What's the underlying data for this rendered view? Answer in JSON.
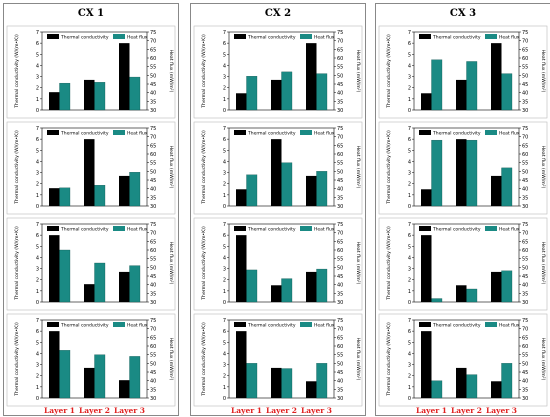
{
  "columns": [
    {
      "title": "CX 1"
    },
    {
      "title": "CX 2"
    },
    {
      "title": "CX 3"
    }
  ],
  "legend": {
    "thermal_conductivity": "Thermal conductivity",
    "heat_flux": "Heat flux"
  },
  "axis_labels": {
    "left": "Thermal conductivity (W/(m•K))",
    "right": "Heat flux (mW/m²)"
  },
  "colors": {
    "thermal_conductivity": "#000000",
    "heat_flux": "#1a8a84",
    "layer_label": "#e02020"
  },
  "chart_data": {
    "type": "bar",
    "categories": [
      "Layer 1",
      "Layer 2",
      "Layer 3"
    ],
    "left_axis": {
      "label": "Thermal conductivity (W/(m•K))",
      "ylim": [
        0,
        7
      ],
      "ticks": [
        0,
        1,
        2,
        3,
        4,
        5,
        6,
        7
      ]
    },
    "right_axis": {
      "label": "Heat flux (mW/m²)",
      "ylim": [
        30,
        75
      ],
      "ticks": [
        30,
        35,
        40,
        45,
        50,
        55,
        60,
        65,
        70,
        75
      ]
    },
    "panels": [
      {
        "column": "CX 1",
        "row": 1,
        "thermal_conductivity": [
          1.6,
          2.7,
          6.0
        ],
        "heat_flux": [
          45.5,
          46.0,
          49.0
        ]
      },
      {
        "column": "CX 1",
        "row": 2,
        "thermal_conductivity": [
          1.6,
          6.0,
          2.7
        ],
        "heat_flux": [
          40.5,
          42.0,
          49.5
        ]
      },
      {
        "column": "CX 1",
        "row": 3,
        "thermal_conductivity": [
          6.0,
          1.6,
          2.7
        ],
        "heat_flux": [
          60.0,
          52.5,
          51.0
        ]
      },
      {
        "column": "CX 1",
        "row": 4,
        "thermal_conductivity": [
          6.0,
          2.7,
          1.6
        ],
        "heat_flux": [
          57.5,
          55.0,
          54.0
        ]
      },
      {
        "column": "CX 2",
        "row": 1,
        "thermal_conductivity": [
          1.5,
          2.7,
          6.0
        ],
        "heat_flux": [
          49.5,
          52.0,
          51.0
        ]
      },
      {
        "column": "CX 2",
        "row": 2,
        "thermal_conductivity": [
          1.5,
          6.0,
          2.7
        ],
        "heat_flux": [
          48.0,
          55.0,
          50.0
        ]
      },
      {
        "column": "CX 2",
        "row": 3,
        "thermal_conductivity": [
          6.0,
          1.5,
          2.7
        ],
        "heat_flux": [
          48.5,
          43.5,
          49.0
        ]
      },
      {
        "column": "CX 2",
        "row": 4,
        "thermal_conductivity": [
          6.0,
          2.7,
          1.5
        ],
        "heat_flux": [
          50.0,
          47.0,
          50.0
        ]
      },
      {
        "column": "CX 3",
        "row": 1,
        "thermal_conductivity": [
          1.5,
          2.7,
          6.0
        ],
        "heat_flux": [
          59.0,
          58.0,
          51.0
        ]
      },
      {
        "column": "CX 3",
        "row": 2,
        "thermal_conductivity": [
          1.5,
          6.0,
          2.7
        ],
        "heat_flux": [
          68.0,
          68.0,
          52.0
        ]
      },
      {
        "column": "CX 3",
        "row": 3,
        "thermal_conductivity": [
          6.0,
          1.5,
          2.7
        ],
        "heat_flux": [
          32.0,
          37.5,
          48.0
        ]
      },
      {
        "column": "CX 3",
        "row": 4,
        "thermal_conductivity": [
          6.0,
          2.7,
          1.5
        ],
        "heat_flux": [
          40.0,
          43.5,
          50.0
        ]
      }
    ]
  }
}
